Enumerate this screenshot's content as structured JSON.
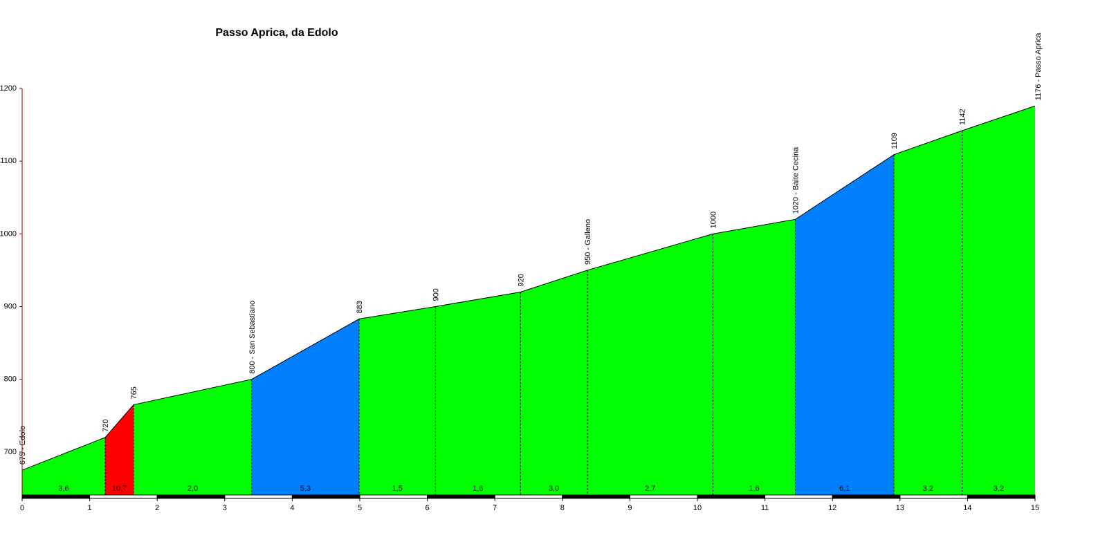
{
  "chart_data": {
    "type": "area",
    "title": "Passo Aprica, da Edolo",
    "x": [
      0,
      1.23,
      1.65,
      3.4,
      4.99,
      6.12,
      7.38,
      8.37,
      10.23,
      11.45,
      12.91,
      13.92,
      15
    ],
    "values": [
      675,
      720,
      765,
      800,
      883,
      900,
      920,
      950,
      1000,
      1020,
      1109,
      1142,
      1176
    ],
    "value_labels": [
      "675 - Edolo",
      "720",
      "765",
      "800 - San Sebastiano",
      "883",
      "900",
      "920",
      "950 - Galleno",
      "1000",
      "1020 - Baite Cecina",
      "1109",
      "1142",
      "1176 - Passo Aprica"
    ],
    "segments": {
      "values": [
        3.6,
        10.7,
        2.0,
        5.3,
        1.5,
        1.6,
        3.0,
        2.7,
        1.6,
        6.1,
        3.2,
        3.2
      ],
      "value_labels": [
        "3,6",
        "10,7",
        "2,0",
        "5,3",
        "1,5",
        "1,6",
        "3,0",
        "2,7",
        "1,6",
        "6,1",
        "3,2",
        "3,2"
      ],
      "colors": [
        "#00ff00",
        "#ff0000",
        "#00ff00",
        "#0080ff",
        "#00ff00",
        "#00ff00",
        "#00ff00",
        "#00ff00",
        "#00ff00",
        "#0080ff",
        "#00ff00",
        "#00ff00"
      ]
    },
    "xlim": [
      0,
      15
    ],
    "xticks": [
      0,
      1,
      2,
      3,
      4,
      5,
      6,
      7,
      8,
      9,
      10,
      11,
      12,
      13,
      14,
      15
    ],
    "ylim": [
      640,
      1200
    ],
    "yticks": [
      700,
      800,
      900,
      1000,
      1100,
      1200
    ]
  }
}
